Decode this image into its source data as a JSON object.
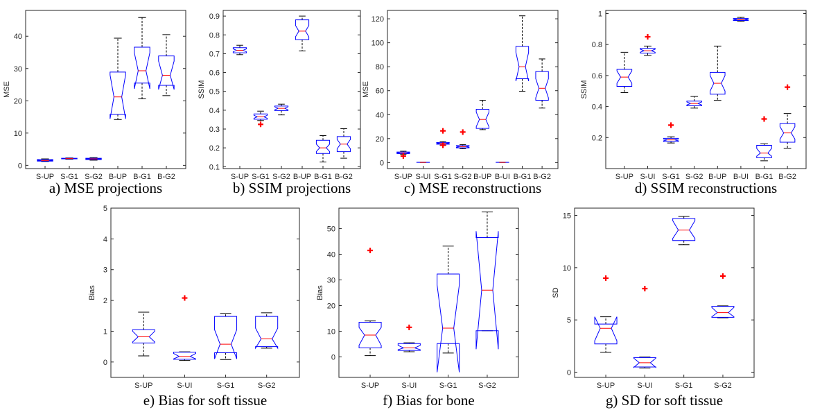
{
  "chart_data": [
    {
      "type": "boxplot",
      "caption": "a) MSE projections",
      "ylabel": "MSE",
      "ylim": [
        -1,
        48
      ],
      "yticks": [
        0,
        10,
        20,
        30,
        40
      ],
      "categories": [
        "S-UP",
        "S-G1",
        "S-G2",
        "B-UP",
        "B-G1",
        "B-G2"
      ],
      "boxes": [
        {
          "whislo": 1.2,
          "q1": 1.3,
          "med": 1.5,
          "q3": 1.8,
          "whishi": 2.0,
          "notch_lo": 1.4,
          "notch_hi": 1.6,
          "outliers": []
        },
        {
          "whislo": 1.9,
          "q1": 2.0,
          "med": 2.1,
          "q3": 2.2,
          "whishi": 2.3,
          "notch_lo": 2.05,
          "notch_hi": 2.15,
          "outliers": []
        },
        {
          "whislo": 1.6,
          "q1": 1.8,
          "med": 2.0,
          "q3": 2.2,
          "whishi": 2.4,
          "notch_lo": 1.9,
          "notch_hi": 2.1,
          "outliers": []
        },
        {
          "whislo": 14.2,
          "q1": 15.8,
          "med": 21.2,
          "q3": 28.9,
          "whishi": 39.4,
          "notch_lo": 14.4,
          "notch_hi": 28.0,
          "outliers": []
        },
        {
          "whislo": 20.6,
          "q1": 25.5,
          "med": 29.3,
          "q3": 36.6,
          "whishi": 45.8,
          "notch_lo": 23.7,
          "notch_hi": 34.9,
          "outliers": []
        },
        {
          "whislo": 21.6,
          "q1": 24.8,
          "med": 27.9,
          "q3": 33.9,
          "whishi": 40.5,
          "notch_lo": 23.5,
          "notch_hi": 32.3,
          "outliers": []
        }
      ]
    },
    {
      "type": "boxplot",
      "caption": "b) SSIM projections",
      "ylabel": "SSIM",
      "ylim": [
        0.09,
        0.93
      ],
      "yticks": [
        0.1,
        0.2,
        0.3,
        0.4,
        0.5,
        0.6,
        0.7,
        0.8,
        0.9
      ],
      "categories": [
        "S-UP",
        "S-G1",
        "S-G2",
        "B-UP",
        "B-G1",
        "B-G2"
      ],
      "boxes": [
        {
          "whislo": 0.695,
          "q1": 0.705,
          "med": 0.718,
          "q3": 0.732,
          "whishi": 0.745,
          "notch_lo": 0.71,
          "notch_hi": 0.726,
          "outliers": []
        },
        {
          "whislo": 0.345,
          "q1": 0.352,
          "med": 0.365,
          "q3": 0.38,
          "whishi": 0.395,
          "notch_lo": 0.357,
          "notch_hi": 0.373,
          "outliers": [
            0.325
          ]
        },
        {
          "whislo": 0.375,
          "q1": 0.398,
          "med": 0.41,
          "q3": 0.422,
          "whishi": 0.432,
          "notch_lo": 0.402,
          "notch_hi": 0.418,
          "outliers": []
        },
        {
          "whislo": 0.715,
          "q1": 0.775,
          "med": 0.82,
          "q3": 0.88,
          "whishi": 0.9,
          "notch_lo": 0.79,
          "notch_hi": 0.85,
          "outliers": []
        },
        {
          "whislo": 0.125,
          "q1": 0.17,
          "med": 0.2,
          "q3": 0.24,
          "whishi": 0.265,
          "notch_lo": 0.18,
          "notch_hi": 0.22,
          "outliers": []
        },
        {
          "whislo": 0.145,
          "q1": 0.18,
          "med": 0.22,
          "q3": 0.26,
          "whishi": 0.302,
          "notch_lo": 0.195,
          "notch_hi": 0.245,
          "outliers": []
        }
      ]
    },
    {
      "type": "boxplot",
      "caption": "c) MSE reconstructions",
      "ylabel": "MSE",
      "ylim": [
        -5,
        127
      ],
      "yticks": [
        0,
        20,
        40,
        60,
        80,
        100,
        120
      ],
      "categories": [
        "S-UP",
        "S-UI",
        "S-G1",
        "S-G2",
        "B-UP",
        "B-UI",
        "B-G1",
        "B-G2"
      ],
      "boxes": [
        {
          "whislo": 7.0,
          "q1": 7.5,
          "med": 8.0,
          "q3": 8.8,
          "whishi": 9.5,
          "notch_lo": 7.7,
          "notch_hi": 8.3,
          "outliers": [
            5.5
          ]
        },
        {
          "whislo": 0.1,
          "q1": 0.15,
          "med": 0.2,
          "q3": 0.25,
          "whishi": 0.3,
          "notch_lo": 0.17,
          "notch_hi": 0.23,
          "outliers": []
        },
        {
          "whislo": 14.5,
          "q1": 15.3,
          "med": 16.0,
          "q3": 16.8,
          "whishi": 17.5,
          "notch_lo": 15.6,
          "notch_hi": 16.4,
          "outliers": [
            26.5,
            14.5
          ]
        },
        {
          "whislo": 11.5,
          "q1": 12.3,
          "med": 13.2,
          "q3": 14.2,
          "whishi": 15.0,
          "notch_lo": 12.7,
          "notch_hi": 13.7,
          "outliers": [
            25.5
          ]
        },
        {
          "whislo": 27.5,
          "q1": 28.5,
          "med": 36.0,
          "q3": 44.5,
          "whishi": 52.0,
          "notch_lo": 30.0,
          "notch_hi": 42.0,
          "outliers": []
        },
        {
          "whislo": 0.1,
          "q1": 0.15,
          "med": 0.2,
          "q3": 0.25,
          "whishi": 0.3,
          "notch_lo": 0.17,
          "notch_hi": 0.23,
          "outliers": []
        },
        {
          "whislo": 59.5,
          "q1": 70.0,
          "med": 80.0,
          "q3": 97.0,
          "whishi": 122.5,
          "notch_lo": 68.0,
          "notch_hi": 92.0,
          "outliers": []
        },
        {
          "whislo": 45.5,
          "q1": 52.0,
          "med": 62.0,
          "q3": 76.0,
          "whishi": 86.5,
          "notch_lo": 54.0,
          "notch_hi": 70.0,
          "outliers": []
        }
      ]
    },
    {
      "type": "boxplot",
      "caption": "d) SSIM reconstructions",
      "ylabel": "SSIM",
      "ylim": [
        0.0,
        1.02
      ],
      "yticks": [
        0.2,
        0.4,
        0.6,
        0.8,
        1
      ],
      "categories": [
        "S-UP",
        "S-UI",
        "S-G1",
        "S-G2",
        "B-UP",
        "B-UI",
        "B-G1",
        "B-G2"
      ],
      "boxes": [
        {
          "whislo": 0.49,
          "q1": 0.53,
          "med": 0.59,
          "q3": 0.64,
          "whishi": 0.75,
          "notch_lo": 0.55,
          "notch_hi": 0.63,
          "outliers": []
        },
        {
          "whislo": 0.73,
          "q1": 0.745,
          "med": 0.76,
          "q3": 0.775,
          "whishi": 0.79,
          "notch_lo": 0.75,
          "notch_hi": 0.77,
          "outliers": [
            0.85
          ]
        },
        {
          "whislo": 0.165,
          "q1": 0.175,
          "med": 0.185,
          "q3": 0.195,
          "whishi": 0.205,
          "notch_lo": 0.179,
          "notch_hi": 0.191,
          "outliers": [
            0.28
          ]
        },
        {
          "whislo": 0.39,
          "q1": 0.405,
          "med": 0.42,
          "q3": 0.435,
          "whishi": 0.465,
          "notch_lo": 0.41,
          "notch_hi": 0.43,
          "outliers": []
        },
        {
          "whislo": 0.44,
          "q1": 0.48,
          "med": 0.55,
          "q3": 0.62,
          "whishi": 0.79,
          "notch_lo": 0.5,
          "notch_hi": 0.6,
          "outliers": []
        },
        {
          "whislo": 0.95,
          "q1": 0.955,
          "med": 0.96,
          "q3": 0.968,
          "whishi": 0.975,
          "notch_lo": 0.957,
          "notch_hi": 0.965,
          "outliers": []
        },
        {
          "whislo": 0.05,
          "q1": 0.07,
          "med": 0.1,
          "q3": 0.15,
          "whishi": 0.16,
          "notch_lo": 0.08,
          "notch_hi": 0.13,
          "outliers": [
            0.32
          ]
        },
        {
          "whislo": 0.13,
          "q1": 0.17,
          "med": 0.23,
          "q3": 0.29,
          "whishi": 0.355,
          "notch_lo": 0.19,
          "notch_hi": 0.27,
          "outliers": [
            0.525
          ]
        }
      ]
    },
    {
      "type": "boxplot",
      "caption": "e) Bias for soft tissue",
      "ylabel": "Bias",
      "ylim": [
        -0.5,
        5
      ],
      "yticks": [
        0,
        1,
        2,
        3,
        4,
        5
      ],
      "categories": [
        "S-UP",
        "S-UI",
        "S-G1",
        "S-G2"
      ],
      "boxes": [
        {
          "whislo": 0.2,
          "q1": 0.62,
          "med": 0.82,
          "q3": 1.05,
          "whishi": 1.62,
          "notch_lo": 0.65,
          "notch_hi": 1.0,
          "outliers": []
        },
        {
          "whislo": 0.05,
          "q1": 0.09,
          "med": 0.18,
          "q3": 0.32,
          "whishi": 0.33,
          "notch_lo": 0.1,
          "notch_hi": 0.28,
          "outliers": [
            2.08
          ]
        },
        {
          "whislo": 0.08,
          "q1": 0.3,
          "med": 0.58,
          "q3": 1.48,
          "whishi": 1.58,
          "notch_lo": 0.1,
          "notch_hi": 1.05,
          "outliers": []
        },
        {
          "whislo": 0.45,
          "q1": 0.5,
          "med": 0.75,
          "q3": 1.48,
          "whishi": 1.6,
          "notch_lo": 0.45,
          "notch_hi": 1.1,
          "outliers": []
        }
      ]
    },
    {
      "type": "boxplot",
      "caption": "f) Bias for bone",
      "ylabel": "Bias",
      "ylim": [
        -8,
        58
      ],
      "yticks": [
        0,
        10,
        20,
        30,
        40,
        50
      ],
      "categories": [
        "S-UP",
        "S-UI",
        "S-G1",
        "S-G2"
      ],
      "boxes": [
        {
          "whislo": 0.5,
          "q1": 3.5,
          "med": 8.5,
          "q3": 13.5,
          "whishi": 14.0,
          "notch_lo": 4.5,
          "notch_hi": 11.5,
          "outliers": [
            41.5
          ]
        },
        {
          "whislo": 2.0,
          "q1": 2.5,
          "med": 3.5,
          "q3": 5.2,
          "whishi": 5.5,
          "notch_lo": 2.8,
          "notch_hi": 4.5,
          "outliers": [
            11.5
          ]
        },
        {
          "whislo": 1.5,
          "q1": 5.2,
          "med": 11.2,
          "q3": 32.3,
          "whishi": 43.2,
          "notch_lo": -6.0,
          "notch_hi": 28.0,
          "outliers": []
        },
        {
          "whislo": 10.2,
          "q1": 10.2,
          "med": 26.0,
          "q3": 46.5,
          "whishi": 56.5,
          "notch_lo": 3.0,
          "notch_hi": 49.0,
          "outliers": []
        }
      ]
    },
    {
      "type": "boxplot",
      "caption": "g) SD for soft tissue",
      "ylabel": "SD",
      "ylim": [
        -0.5,
        15.7
      ],
      "yticks": [
        0,
        5,
        10,
        15
      ],
      "categories": [
        "S-UP",
        "S-UI",
        "S-G1",
        "S-G2"
      ],
      "boxes": [
        {
          "whislo": 1.9,
          "q1": 2.7,
          "med": 4.2,
          "q3": 4.6,
          "whishi": 5.3,
          "notch_lo": 3.0,
          "notch_hi": 5.3,
          "outliers": [
            9.0
          ]
        },
        {
          "whislo": 0.4,
          "q1": 0.5,
          "med": 0.9,
          "q3": 1.4,
          "whishi": 1.45,
          "notch_lo": 0.45,
          "notch_hi": 1.35,
          "outliers": [
            8.0
          ]
        },
        {
          "whislo": 12.2,
          "q1": 12.6,
          "med": 13.6,
          "q3": 14.7,
          "whishi": 14.9,
          "notch_lo": 12.8,
          "notch_hi": 14.5,
          "outliers": []
        },
        {
          "whislo": 5.2,
          "q1": 5.25,
          "med": 5.7,
          "q3": 6.3,
          "whishi": 6.35,
          "notch_lo": 5.3,
          "notch_hi": 6.2,
          "outliers": [
            9.2
          ]
        }
      ]
    }
  ]
}
